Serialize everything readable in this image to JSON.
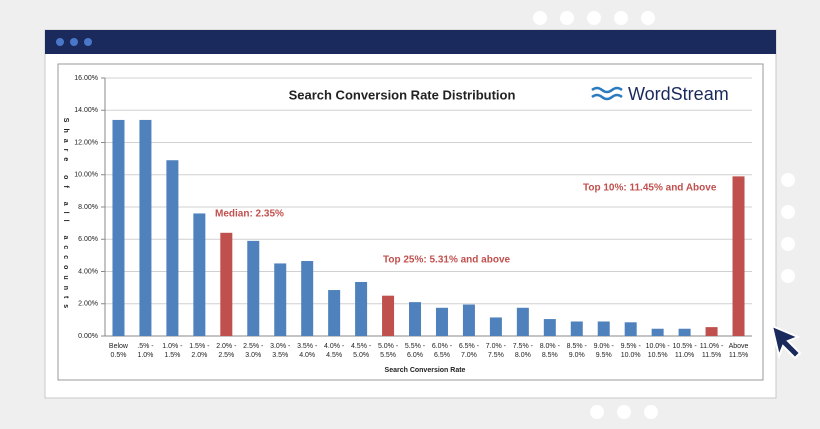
{
  "chart_data": {
    "type": "bar",
    "title": "Search Conversion Rate Distribution",
    "logo": "WordStream",
    "x_label": "Search Conversion Rate",
    "y_label": "Share of all accounts",
    "categories": [
      "Below\n0.5%",
      ".5% -\n1.0%",
      "1.0% -\n1.5%",
      "1.5% -\n2.0%",
      "2.0% -\n2.5%",
      "2.5% -\n3.0%",
      "3.0% -\n3.5%",
      "3.5% -\n4.0%",
      "4.0% -\n4.5%",
      "4.5% -\n5.0%",
      "5.0% -\n5.5%",
      "5.5% -\n6.0%",
      "6.0% -\n6.5%",
      "6.5% -\n7.0%",
      "7.0% -\n7.5%",
      "7.5% -\n8.0%",
      "8.0% -\n8.5%",
      "8.5% -\n9.0%",
      "9.0% -\n9.5%",
      "9.5% -\n10.0%",
      "10.0% -\n10.5%",
      "10.5% -\n11.0%",
      "11.0% -\n11.5%",
      "Above\n11.5%"
    ],
    "values": [
      13.4,
      13.4,
      10.9,
      7.6,
      6.4,
      5.9,
      4.5,
      4.65,
      2.85,
      3.35,
      2.5,
      2.1,
      1.75,
      1.95,
      1.15,
      1.75,
      1.05,
      0.9,
      0.9,
      0.85,
      0.45,
      0.45,
      0.55,
      9.9
    ],
    "colors": [
      "#4f81bd",
      "#4f81bd",
      "#4f81bd",
      "#4f81bd",
      "#c0504d",
      "#4f81bd",
      "#4f81bd",
      "#4f81bd",
      "#4f81bd",
      "#4f81bd",
      "#c0504d",
      "#4f81bd",
      "#4f81bd",
      "#4f81bd",
      "#4f81bd",
      "#4f81bd",
      "#4f81bd",
      "#4f81bd",
      "#4f81bd",
      "#4f81bd",
      "#4f81bd",
      "#4f81bd",
      "#c0504d",
      "#c0504d"
    ],
    "ylim": [
      0,
      16
    ],
    "yticks": [
      {
        "value": 0,
        "label": "0.00%"
      },
      {
        "value": 2,
        "label": "2.00%"
      },
      {
        "value": 4,
        "label": "4.00%"
      },
      {
        "value": 6,
        "label": "6.00%"
      },
      {
        "value": 8,
        "label": "8.00%"
      },
      {
        "value": 10,
        "label": "10.00%"
      },
      {
        "value": 12,
        "label": "12.00%"
      },
      {
        "value": 14,
        "label": "14.00%"
      },
      {
        "value": 16,
        "label": "16.00%"
      }
    ],
    "grid": true,
    "annotations": [
      "Median: 2.35%",
      "Top 25%: 5.31% and above",
      "Top 10%: 11.45% and Above"
    ]
  }
}
